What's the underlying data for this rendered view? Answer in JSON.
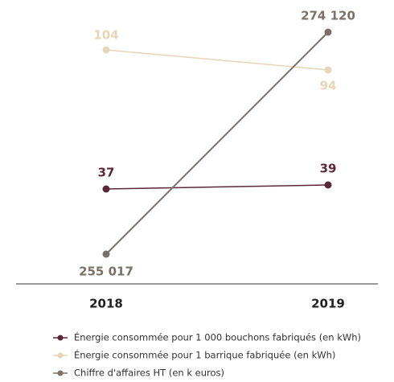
{
  "chart_data": {
    "type": "line",
    "categories": [
      "2018",
      "2019"
    ],
    "series": [
      {
        "name": "Énergie consommée pour 1 000 bouchons fabriqués (en kWh)",
        "color": "#5b2838",
        "values": [
          37,
          39
        ]
      },
      {
        "name": "Énergie consommée pour 1 barrique fabriquée (en kWh)",
        "color": "#e6d5b8",
        "values": [
          104,
          94
        ]
      },
      {
        "name": "Chiffre d'affaires HT (en k euros)",
        "color": "#7a7268",
        "values": [
          255017,
          274120
        ],
        "value_labels": [
          "255 017",
          "274 120"
        ]
      }
    ]
  }
}
